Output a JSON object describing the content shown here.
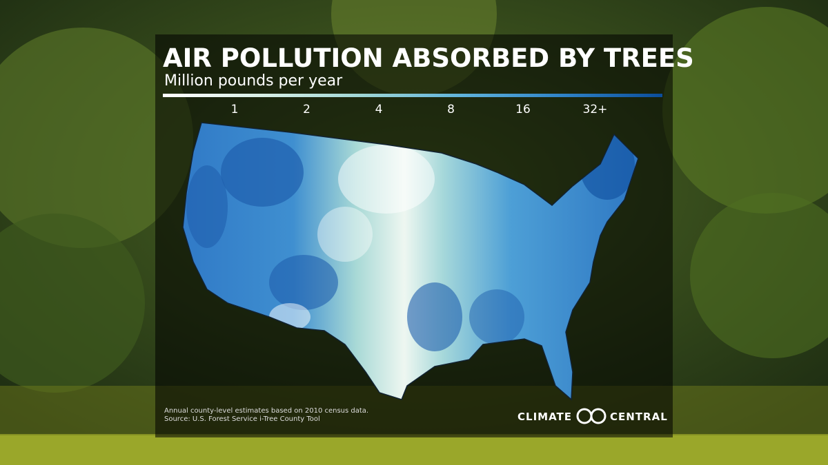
{
  "header": {
    "title": "AIR POLLUTION ABSORBED BY TREES",
    "subtitle": "Million pounds per year"
  },
  "legend": {
    "labels": [
      "1",
      "2",
      "4",
      "8",
      "16",
      "32+"
    ],
    "colors": [
      "#ffffff",
      "#d8efe6",
      "#9fd6d6",
      "#5fb3dc",
      "#2f83c8",
      "#0b4d9a"
    ]
  },
  "footnote": [
    "Annual county-level estimates based on 2010 census data.",
    "Source: U.S. Forest Service i-Tree County Tool"
  ],
  "logo": {
    "left": "CLIMATE",
    "right": "CENTRAL"
  }
}
